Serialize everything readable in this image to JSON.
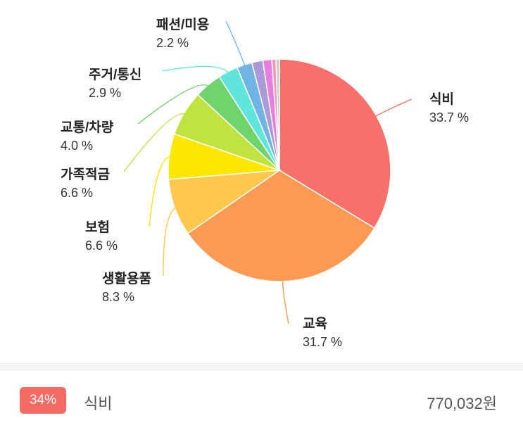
{
  "chart_data": {
    "type": "pie",
    "slices": [
      {
        "label": "식비",
        "pct_label": "33.7 %",
        "value": 33.7,
        "color": "#f8706a"
      },
      {
        "label": "교육",
        "pct_label": "31.7 %",
        "value": 31.7,
        "color": "#fc9a54"
      },
      {
        "label": "생활용품",
        "pct_label": "8.3 %",
        "value": 8.3,
        "color": "#fdc84b"
      },
      {
        "label": "보험",
        "pct_label": "6.6 %",
        "value": 6.6,
        "color": "#fde600"
      },
      {
        "label": "가족적금",
        "pct_label": "6.6 %",
        "value": 6.6,
        "color": "#bfe33f"
      },
      {
        "label": "교통/차량",
        "pct_label": "4.0 %",
        "value": 4.0,
        "color": "#6fd46c"
      },
      {
        "label": "주거/통신",
        "pct_label": "2.9 %",
        "value": 2.9,
        "color": "#5fe5dc"
      },
      {
        "label": "패션/미용",
        "pct_label": "2.2 %",
        "value": 2.2,
        "color": "#72b3e6"
      },
      {
        "label": "",
        "pct_label": "",
        "value": 1.6,
        "color": "#ab9ad8"
      },
      {
        "label": "",
        "pct_label": "",
        "value": 1.3,
        "color": "#e67fe0"
      },
      {
        "label": "",
        "pct_label": "",
        "value": 0.6,
        "color": "#f596b8"
      },
      {
        "label": "",
        "pct_label": "",
        "value": 0.5,
        "color": "#c9c9c9"
      }
    ]
  },
  "summary": {
    "badge": "34%",
    "badge_color": "#f46b63",
    "category": "식비",
    "amount": "770,032원"
  }
}
